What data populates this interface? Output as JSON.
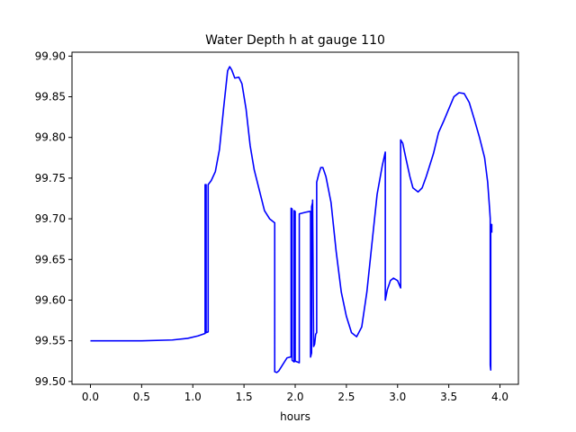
{
  "chart_data": {
    "type": "line",
    "title": "Water Depth h at gauge 110",
    "xlabel": "hours",
    "ylabel": "",
    "xlim": [
      -0.18,
      4.18
    ],
    "ylim": [
      99.4965,
      99.9048
    ],
    "x_ticks": [
      0.0,
      0.5,
      1.0,
      1.5,
      2.0,
      2.5,
      3.0,
      3.5,
      4.0
    ],
    "x_tick_labels": [
      "0.0",
      "0.5",
      "1.0",
      "1.5",
      "2.0",
      "2.5",
      "3.0",
      "3.5",
      "4.0"
    ],
    "y_ticks": [
      99.5,
      99.55,
      99.6,
      99.65,
      99.7,
      99.75,
      99.8,
      99.85,
      99.9
    ],
    "y_tick_labels": [
      "99.50",
      "99.55",
      "99.60",
      "99.65",
      "99.70",
      "99.75",
      "99.80",
      "99.85",
      "99.90"
    ],
    "grid": false,
    "series": [
      {
        "name": "",
        "color": "#0000ff",
        "points": [
          [
            0.0,
            99.55
          ],
          [
            0.5,
            99.55
          ],
          [
            0.8,
            99.551
          ],
          [
            0.95,
            99.553
          ],
          [
            1.05,
            99.556
          ],
          [
            1.12,
            99.559
          ],
          [
            1.12,
            99.742
          ],
          [
            1.13,
            99.742
          ],
          [
            1.13,
            99.56
          ],
          [
            1.15,
            99.561
          ],
          [
            1.15,
            99.742
          ],
          [
            1.18,
            99.747
          ],
          [
            1.22,
            99.758
          ],
          [
            1.26,
            99.785
          ],
          [
            1.3,
            99.835
          ],
          [
            1.34,
            99.882
          ],
          [
            1.36,
            99.887
          ],
          [
            1.38,
            99.883
          ],
          [
            1.41,
            99.873
          ],
          [
            1.45,
            99.874
          ],
          [
            1.48,
            99.866
          ],
          [
            1.52,
            99.835
          ],
          [
            1.56,
            99.79
          ],
          [
            1.6,
            99.76
          ],
          [
            1.65,
            99.735
          ],
          [
            1.7,
            99.71
          ],
          [
            1.75,
            99.7
          ],
          [
            1.8,
            99.695
          ],
          [
            1.8,
            99.512
          ],
          [
            1.82,
            99.511
          ],
          [
            1.84,
            99.513
          ],
          [
            1.88,
            99.521
          ],
          [
            1.92,
            99.529
          ],
          [
            1.95,
            99.53
          ],
          [
            1.96,
            99.53
          ],
          [
            1.96,
            99.713
          ],
          [
            1.97,
            99.712
          ],
          [
            1.97,
            99.526
          ],
          [
            1.99,
            99.524
          ],
          [
            1.99,
            99.71
          ],
          [
            2.0,
            99.709
          ],
          [
            2.0,
            99.525
          ],
          [
            2.04,
            99.523
          ],
          [
            2.04,
            99.706
          ],
          [
            2.1,
            99.708
          ],
          [
            2.14,
            99.709
          ],
          [
            2.15,
            99.709
          ],
          [
            2.15,
            99.53
          ],
          [
            2.16,
            99.535
          ],
          [
            2.16,
            99.715
          ],
          [
            2.17,
            99.72
          ],
          [
            2.17,
            99.723
          ],
          [
            2.18,
            99.545
          ],
          [
            2.18,
            99.543
          ],
          [
            2.19,
            99.546
          ],
          [
            2.2,
            99.558
          ],
          [
            2.21,
            99.56
          ],
          [
            2.21,
            99.745
          ],
          [
            2.23,
            99.755
          ],
          [
            2.25,
            99.763
          ],
          [
            2.27,
            99.763
          ],
          [
            2.3,
            99.752
          ],
          [
            2.35,
            99.72
          ],
          [
            2.4,
            99.66
          ],
          [
            2.45,
            99.61
          ],
          [
            2.5,
            99.58
          ],
          [
            2.55,
            99.56
          ],
          [
            2.6,
            99.555
          ],
          [
            2.65,
            99.567
          ],
          [
            2.7,
            99.61
          ],
          [
            2.75,
            99.67
          ],
          [
            2.8,
            99.73
          ],
          [
            2.85,
            99.765
          ],
          [
            2.88,
            99.782
          ],
          [
            2.88,
            99.6
          ],
          [
            2.9,
            99.613
          ],
          [
            2.93,
            99.624
          ],
          [
            2.96,
            99.627
          ],
          [
            3.0,
            99.624
          ],
          [
            3.03,
            99.615
          ],
          [
            3.03,
            99.797
          ],
          [
            3.05,
            99.793
          ],
          [
            3.08,
            99.775
          ],
          [
            3.12,
            99.752
          ],
          [
            3.15,
            99.738
          ],
          [
            3.2,
            99.733
          ],
          [
            3.24,
            99.738
          ],
          [
            3.28,
            99.752
          ],
          [
            3.35,
            99.78
          ],
          [
            3.4,
            99.806
          ],
          [
            3.45,
            99.82
          ],
          [
            3.5,
            99.835
          ],
          [
            3.55,
            99.85
          ],
          [
            3.6,
            99.855
          ],
          [
            3.65,
            99.854
          ],
          [
            3.7,
            99.843
          ],
          [
            3.75,
            99.822
          ],
          [
            3.8,
            99.8
          ],
          [
            3.85,
            99.775
          ],
          [
            3.88,
            99.745
          ],
          [
            3.9,
            99.71
          ],
          [
            3.905,
            99.7
          ],
          [
            3.905,
            99.52
          ],
          [
            3.91,
            99.514
          ],
          [
            3.91,
            99.693
          ],
          [
            3.92,
            99.693
          ],
          [
            3.92,
            99.683
          ]
        ]
      }
    ]
  }
}
